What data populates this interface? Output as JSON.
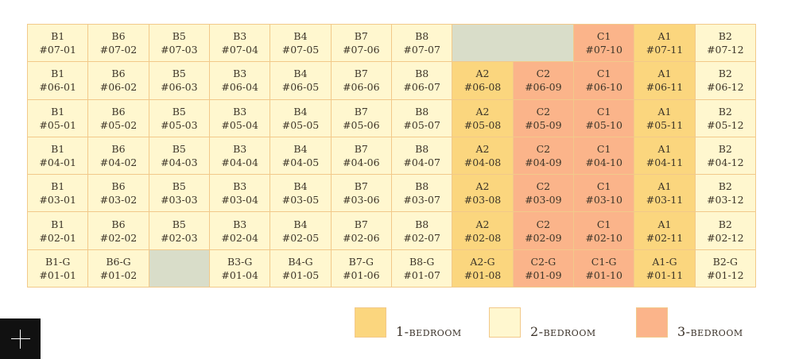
{
  "colors": {
    "1-bedroom": "#fbd67e",
    "2-bedroom": "#fff7cf",
    "3-bedroom": "#fbb48a",
    "empty": "#d9ddc9"
  },
  "grid": {
    "rows": [
      [
        {
          "type": "B1",
          "unit": "#07-01",
          "category": "2-bedroom"
        },
        {
          "type": "B6",
          "unit": "#07-02",
          "category": "2-bedroom"
        },
        {
          "type": "B5",
          "unit": "#07-03",
          "category": "2-bedroom"
        },
        {
          "type": "B3",
          "unit": "#07-04",
          "category": "2-bedroom"
        },
        {
          "type": "B4",
          "unit": "#07-05",
          "category": "2-bedroom"
        },
        {
          "type": "B7",
          "unit": "#07-06",
          "category": "2-bedroom"
        },
        {
          "type": "B8",
          "unit": "#07-07",
          "category": "2-bedroom"
        },
        {
          "category": "empty",
          "span": 2
        },
        {
          "type": "C1",
          "unit": "#07-10",
          "category": "3-bedroom"
        },
        {
          "type": "A1",
          "unit": "#07-11",
          "category": "1-bedroom"
        },
        {
          "type": "B2",
          "unit": "#07-12",
          "category": "2-bedroom"
        }
      ],
      [
        {
          "type": "B1",
          "unit": "#06-01",
          "category": "2-bedroom"
        },
        {
          "type": "B6",
          "unit": "#06-02",
          "category": "2-bedroom"
        },
        {
          "type": "B5",
          "unit": "#06-03",
          "category": "2-bedroom"
        },
        {
          "type": "B3",
          "unit": "#06-04",
          "category": "2-bedroom"
        },
        {
          "type": "B4",
          "unit": "#06-05",
          "category": "2-bedroom"
        },
        {
          "type": "B7",
          "unit": "#06-06",
          "category": "2-bedroom"
        },
        {
          "type": "B8",
          "unit": "#06-07",
          "category": "2-bedroom"
        },
        {
          "type": "A2",
          "unit": "#06-08",
          "category": "1-bedroom"
        },
        {
          "type": "C2",
          "unit": "#06-09",
          "category": "3-bedroom"
        },
        {
          "type": "C1",
          "unit": "#06-10",
          "category": "3-bedroom"
        },
        {
          "type": "A1",
          "unit": "#06-11",
          "category": "1-bedroom"
        },
        {
          "type": "B2",
          "unit": "#06-12",
          "category": "2-bedroom"
        }
      ],
      [
        {
          "type": "B1",
          "unit": "#05-01",
          "category": "2-bedroom"
        },
        {
          "type": "B6",
          "unit": "#05-02",
          "category": "2-bedroom"
        },
        {
          "type": "B5",
          "unit": "#05-03",
          "category": "2-bedroom"
        },
        {
          "type": "B3",
          "unit": "#05-04",
          "category": "2-bedroom"
        },
        {
          "type": "B4",
          "unit": "#05-05",
          "category": "2-bedroom"
        },
        {
          "type": "B7",
          "unit": "#05-06",
          "category": "2-bedroom"
        },
        {
          "type": "B8",
          "unit": "#05-07",
          "category": "2-bedroom"
        },
        {
          "type": "A2",
          "unit": "#05-08",
          "category": "1-bedroom"
        },
        {
          "type": "C2",
          "unit": "#05-09",
          "category": "3-bedroom"
        },
        {
          "type": "C1",
          "unit": "#05-10",
          "category": "3-bedroom"
        },
        {
          "type": "A1",
          "unit": "#05-11",
          "category": "1-bedroom"
        },
        {
          "type": "B2",
          "unit": "#05-12",
          "category": "2-bedroom"
        }
      ],
      [
        {
          "type": "B1",
          "unit": "#04-01",
          "category": "2-bedroom"
        },
        {
          "type": "B6",
          "unit": "#04-02",
          "category": "2-bedroom"
        },
        {
          "type": "B5",
          "unit": "#04-03",
          "category": "2-bedroom"
        },
        {
          "type": "B3",
          "unit": "#04-04",
          "category": "2-bedroom"
        },
        {
          "type": "B4",
          "unit": "#04-05",
          "category": "2-bedroom"
        },
        {
          "type": "B7",
          "unit": "#04-06",
          "category": "2-bedroom"
        },
        {
          "type": "B8",
          "unit": "#04-07",
          "category": "2-bedroom"
        },
        {
          "type": "A2",
          "unit": "#04-08",
          "category": "1-bedroom"
        },
        {
          "type": "C2",
          "unit": "#04-09",
          "category": "3-bedroom"
        },
        {
          "type": "C1",
          "unit": "#04-10",
          "category": "3-bedroom"
        },
        {
          "type": "A1",
          "unit": "#04-11",
          "category": "1-bedroom"
        },
        {
          "type": "B2",
          "unit": "#04-12",
          "category": "2-bedroom"
        }
      ],
      [
        {
          "type": "B1",
          "unit": "#03-01",
          "category": "2-bedroom"
        },
        {
          "type": "B6",
          "unit": "#03-02",
          "category": "2-bedroom"
        },
        {
          "type": "B5",
          "unit": "#03-03",
          "category": "2-bedroom"
        },
        {
          "type": "B3",
          "unit": "#03-04",
          "category": "2-bedroom"
        },
        {
          "type": "B4",
          "unit": "#03-05",
          "category": "2-bedroom"
        },
        {
          "type": "B7",
          "unit": "#03-06",
          "category": "2-bedroom"
        },
        {
          "type": "B8",
          "unit": "#03-07",
          "category": "2-bedroom"
        },
        {
          "type": "A2",
          "unit": "#03-08",
          "category": "1-bedroom"
        },
        {
          "type": "C2",
          "unit": "#03-09",
          "category": "3-bedroom"
        },
        {
          "type": "C1",
          "unit": "#03-10",
          "category": "3-bedroom"
        },
        {
          "type": "A1",
          "unit": "#03-11",
          "category": "1-bedroom"
        },
        {
          "type": "B2",
          "unit": "#03-12",
          "category": "2-bedroom"
        }
      ],
      [
        {
          "type": "B1",
          "unit": "#02-01",
          "category": "2-bedroom"
        },
        {
          "type": "B6",
          "unit": "#02-02",
          "category": "2-bedroom"
        },
        {
          "type": "B5",
          "unit": "#02-03",
          "category": "2-bedroom"
        },
        {
          "type": "B3",
          "unit": "#02-04",
          "category": "2-bedroom"
        },
        {
          "type": "B4",
          "unit": "#02-05",
          "category": "2-bedroom"
        },
        {
          "type": "B7",
          "unit": "#02-06",
          "category": "2-bedroom"
        },
        {
          "type": "B8",
          "unit": "#02-07",
          "category": "2-bedroom"
        },
        {
          "type": "A2",
          "unit": "#02-08",
          "category": "1-bedroom"
        },
        {
          "type": "C2",
          "unit": "#02-09",
          "category": "3-bedroom"
        },
        {
          "type": "C1",
          "unit": "#02-10",
          "category": "3-bedroom"
        },
        {
          "type": "A1",
          "unit": "#02-11",
          "category": "1-bedroom"
        },
        {
          "type": "B2",
          "unit": "#02-12",
          "category": "2-bedroom"
        }
      ],
      [
        {
          "type": "B1-G",
          "unit": "#01-01",
          "category": "2-bedroom"
        },
        {
          "type": "B6-G",
          "unit": "#01-02",
          "category": "2-bedroom"
        },
        {
          "category": "empty",
          "span": 1
        },
        {
          "type": "B3-G",
          "unit": "#01-04",
          "category": "2-bedroom"
        },
        {
          "type": "B4-G",
          "unit": "#01-05",
          "category": "2-bedroom"
        },
        {
          "type": "B7-G",
          "unit": "#01-06",
          "category": "2-bedroom"
        },
        {
          "type": "B8-G",
          "unit": "#01-07",
          "category": "2-bedroom"
        },
        {
          "type": "A2-G",
          "unit": "#01-08",
          "category": "1-bedroom"
        },
        {
          "type": "C2-G",
          "unit": "#01-09",
          "category": "3-bedroom"
        },
        {
          "type": "C1-G",
          "unit": "#01-10",
          "category": "3-bedroom"
        },
        {
          "type": "A1-G",
          "unit": "#01-11",
          "category": "1-bedroom"
        },
        {
          "type": "B2-G",
          "unit": "#01-12",
          "category": "2-bedroom"
        }
      ]
    ]
  },
  "legend": [
    {
      "label": "1-bedroom",
      "category": "1-bedroom"
    },
    {
      "label": "2-bedroom",
      "category": "2-bedroom"
    },
    {
      "label": "3-bedroom",
      "category": "3-bedroom"
    }
  ],
  "plus_button": {
    "icon": "plus-icon"
  }
}
